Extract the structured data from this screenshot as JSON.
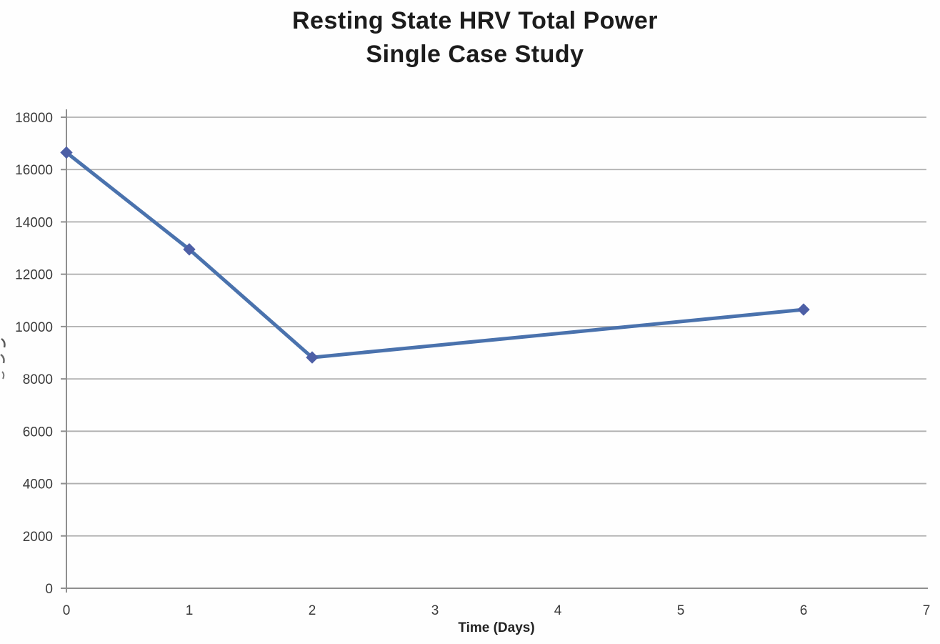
{
  "title": {
    "line1": "Resting State HRV Total Power",
    "line2": "Single Case Study"
  },
  "chart_data": {
    "type": "line",
    "title": "Resting State HRV Total Power",
    "subtitle": "Single Case Study",
    "xlabel": "Time (Days)",
    "ylabel": "",
    "x": [
      0,
      1,
      2,
      6
    ],
    "series": [
      {
        "name": "Resting State HRV Total Power",
        "values": [
          16650,
          12950,
          8820,
          10650
        ]
      }
    ],
    "xlim": [
      0,
      7
    ],
    "ylim": [
      0,
      18000
    ],
    "x_ticks": [
      "0",
      "1",
      "2",
      "3",
      "4",
      "5",
      "6",
      "7"
    ],
    "y_ticks": [
      "0",
      "2000",
      "4000",
      "6000",
      "8000",
      "10000",
      "12000",
      "14000",
      "16000",
      "18000"
    ],
    "grid": "horizontal",
    "legend_position": "none",
    "marker": "diamond",
    "colors": {
      "line": "#4a72ad",
      "marker": "#4d5fa6",
      "gridline": "#b0b0b0",
      "axis": "#8f8f8f",
      "tick_label": "#3a3a3a",
      "title_text": "#1c1c1c"
    }
  }
}
